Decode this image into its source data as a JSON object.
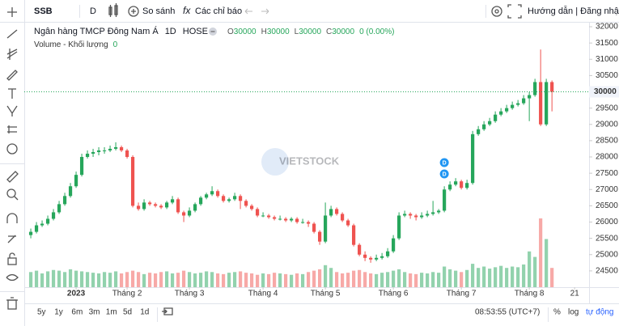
{
  "toolbar": {
    "symbol": "SSB",
    "interval": "D",
    "compare": "So sánh",
    "indicators": "Các chỉ báo",
    "account": "Hướng dẫn | Đăng nhập"
  },
  "legend": {
    "name": "Ngân hàng TMCP Đông Nam Á",
    "interval": "1D",
    "exchange": "HOSE",
    "ohlc": [
      {
        "key": "O",
        "value": 30000
      },
      {
        "key": "H",
        "value": 30000
      },
      {
        "key": "L",
        "value": 30000
      },
      {
        "key": "C",
        "value": 30000
      }
    ],
    "change": "0 (0.00%)",
    "volume_label": "Volume - Khối lượng",
    "volume_value": 0
  },
  "chart_data": {
    "type": "candlestick",
    "up_color": "#26a65b",
    "down_color": "#ef5350",
    "ylim": [
      24000,
      32125
    ],
    "yticks": [
      24500,
      25000,
      25500,
      26000,
      26500,
      27000,
      27500,
      28000,
      28500,
      29000,
      29500,
      30000,
      30500,
      31000,
      31500,
      32000
    ],
    "xlim": [
      -1.15,
      98.55
    ],
    "xticks": [
      {
        "value": 8,
        "label": "2023"
      },
      {
        "value": 17,
        "label": "Tháng 2"
      },
      {
        "value": 28,
        "label": "Tháng 3"
      },
      {
        "value": 41,
        "label": "Tháng 4"
      },
      {
        "value": 52,
        "label": "Tháng 5"
      },
      {
        "value": 64,
        "label": "Tháng 6"
      },
      {
        "value": 76,
        "label": "Tháng 7"
      },
      {
        "value": 88,
        "label": "Tháng 8"
      },
      {
        "value": 96,
        "label": "21"
      }
    ],
    "last_price": 30000,
    "grid": false,
    "watermark": "VIETSTOCK",
    "events": [
      "D",
      "D"
    ],
    "vlim": [
      0,
      100
    ],
    "ohlc": [
      [
        25600,
        25800,
        25500,
        25700
      ],
      [
        25700,
        26000,
        25650,
        25900
      ],
      [
        25900,
        26050,
        25850,
        25950
      ],
      [
        25950,
        26200,
        25900,
        26100
      ],
      [
        26100,
        26400,
        26050,
        26300
      ],
      [
        26300,
        26650,
        26250,
        26550
      ],
      [
        26550,
        26900,
        26500,
        26800
      ],
      [
        26800,
        27200,
        26750,
        27100
      ],
      [
        27100,
        27550,
        27050,
        27450
      ],
      [
        27450,
        28100,
        27400,
        28000
      ],
      [
        28000,
        28200,
        27950,
        28100
      ],
      [
        28100,
        28250,
        28000,
        28150
      ],
      [
        28150,
        28300,
        28050,
        28200
      ],
      [
        28200,
        28300,
        28100,
        28200
      ],
      [
        28200,
        28350,
        28150,
        28250
      ],
      [
        28250,
        28450,
        28200,
        28300
      ],
      [
        28300,
        28350,
        28150,
        28200
      ],
      [
        28200,
        28250,
        27950,
        28000
      ],
      [
        28000,
        28050,
        26450,
        26500
      ],
      [
        26500,
        26600,
        26350,
        26400
      ],
      [
        26400,
        26700,
        26350,
        26600
      ],
      [
        26600,
        26650,
        26500,
        26550
      ],
      [
        26550,
        26600,
        26450,
        26500
      ],
      [
        26500,
        26550,
        26400,
        26450
      ],
      [
        26450,
        26650,
        26400,
        26600
      ],
      [
        26600,
        26800,
        26550,
        26700
      ],
      [
        26700,
        26750,
        26250,
        26300
      ],
      [
        26300,
        26350,
        26000,
        26200
      ],
      [
        26200,
        26450,
        26150,
        26350
      ],
      [
        26350,
        26600,
        26300,
        26550
      ],
      [
        26550,
        26800,
        26500,
        26750
      ],
      [
        26750,
        26900,
        26700,
        26850
      ],
      [
        26850,
        27100,
        26800,
        26950
      ],
      [
        26950,
        27000,
        26750,
        26800
      ],
      [
        26800,
        26850,
        26600,
        26650
      ],
      [
        26650,
        26750,
        26600,
        26700
      ],
      [
        26700,
        26900,
        26650,
        26800
      ],
      [
        26800,
        26850,
        26400,
        26650
      ],
      [
        26650,
        26700,
        26450,
        26500
      ],
      [
        26500,
        26550,
        26350,
        26400
      ],
      [
        26400,
        26450,
        26150,
        26200
      ],
      [
        26200,
        26300,
        26150,
        26200
      ],
      [
        26200,
        26250,
        26100,
        26150
      ],
      [
        26150,
        26200,
        26050,
        26100
      ],
      [
        26100,
        26200,
        26050,
        26100
      ],
      [
        26100,
        26150,
        26000,
        26050
      ],
      [
        26050,
        26150,
        26000,
        26100
      ],
      [
        26100,
        26150,
        25950,
        26000
      ],
      [
        26000,
        26100,
        25950,
        26000
      ],
      [
        26000,
        26050,
        25850,
        25950
      ],
      [
        25950,
        26000,
        25650,
        25700
      ],
      [
        25700,
        25750,
        25300,
        25400
      ],
      [
        25400,
        26600,
        25350,
        26200
      ],
      [
        26200,
        26500,
        26150,
        26400
      ],
      [
        26400,
        26450,
        26200,
        26250
      ],
      [
        26250,
        26300,
        26000,
        26050
      ],
      [
        26050,
        26100,
        25850,
        25900
      ],
      [
        25900,
        25950,
        25250,
        25300
      ],
      [
        25300,
        25350,
        24950,
        25000
      ],
      [
        25000,
        25100,
        24800,
        24900
      ],
      [
        24900,
        24950,
        24750,
        24850
      ],
      [
        24850,
        25000,
        24800,
        24900
      ],
      [
        24900,
        25050,
        24850,
        24950
      ],
      [
        24950,
        25200,
        24900,
        25100
      ],
      [
        25100,
        25600,
        25050,
        25500
      ],
      [
        25500,
        26300,
        25450,
        26200
      ],
      [
        26200,
        26350,
        26150,
        26250
      ],
      [
        26250,
        26300,
        26100,
        26200
      ],
      [
        26200,
        26250,
        26050,
        26150
      ],
      [
        26150,
        26300,
        26100,
        26200
      ],
      [
        26200,
        26350,
        26150,
        26250
      ],
      [
        26250,
        26650,
        26200,
        26300
      ],
      [
        26300,
        26400,
        26250,
        26350
      ],
      [
        26350,
        27100,
        26300,
        27000
      ],
      [
        27000,
        27250,
        26950,
        27150
      ],
      [
        27150,
        27350,
        27100,
        27250
      ],
      [
        27250,
        27300,
        27000,
        27050
      ],
      [
        27050,
        27300,
        27000,
        27200
      ],
      [
        27200,
        28800,
        27150,
        28700
      ],
      [
        28700,
        28950,
        28650,
        28850
      ],
      [
        28850,
        29100,
        28800,
        29000
      ],
      [
        29000,
        29200,
        28950,
        29100
      ],
      [
        29100,
        29400,
        29050,
        29300
      ],
      [
        29300,
        29500,
        29250,
        29400
      ],
      [
        29400,
        29600,
        29350,
        29500
      ],
      [
        29500,
        29700,
        29450,
        29600
      ],
      [
        29600,
        29750,
        29550,
        29650
      ],
      [
        29650,
        29900,
        29600,
        29800
      ],
      [
        29800,
        30000,
        29100,
        29900
      ],
      [
        29900,
        30400,
        29850,
        30300
      ],
      [
        30300,
        31300,
        28950,
        29000
      ],
      [
        29000,
        30400,
        28950,
        30300
      ],
      [
        30300,
        30350,
        29400,
        30000
      ]
    ],
    "volume": [
      22,
      24,
      20,
      23,
      25,
      24,
      22,
      26,
      24,
      23,
      22,
      21,
      20,
      22,
      21,
      23,
      20,
      22,
      24,
      22,
      19,
      21,
      20,
      22,
      23,
      20,
      21,
      24,
      22,
      20,
      21,
      23,
      22,
      20,
      19,
      21,
      22,
      23,
      21,
      20,
      18,
      20,
      19,
      21,
      20,
      19,
      18,
      20,
      19,
      22,
      24,
      26,
      32,
      28,
      22,
      20,
      21,
      24,
      25,
      22,
      20,
      19,
      21,
      22,
      24,
      26,
      22,
      20,
      19,
      21,
      20,
      22,
      21,
      30,
      26,
      24,
      22,
      25,
      34,
      28,
      30,
      27,
      29,
      31,
      28,
      30,
      29,
      33,
      52,
      44,
      100,
      70,
      28
    ]
  },
  "bottom_bar": {
    "ranges": [
      "5y",
      "1y",
      "6m",
      "3m",
      "1m",
      "5d",
      "1d"
    ],
    "time": "08:53:55 (UTC+7)",
    "percent": "%",
    "log": "log",
    "auto": "tự động"
  }
}
